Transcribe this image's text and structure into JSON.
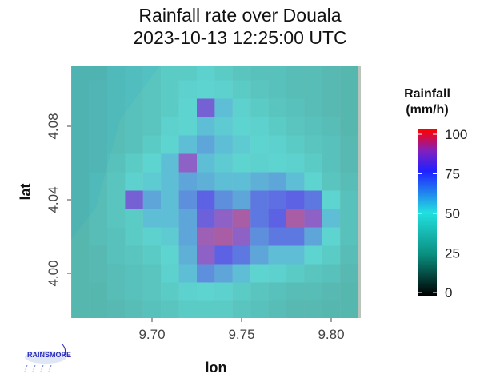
{
  "chart_data": {
    "type": "heatmap",
    "title": "Rainfall rate over Douala",
    "subtitle": "2023-10-13 12:25:00 UTC",
    "xlabel": "lon",
    "ylabel": "lat",
    "xlim": [
      9.655,
      9.815
    ],
    "ylim": [
      3.975,
      4.113
    ],
    "xticks": [
      "9.70",
      "9.75",
      "9.80"
    ],
    "xtick_values": [
      9.7,
      9.75,
      9.8
    ],
    "yticks": [
      "4.00",
      "4.04",
      "4.08"
    ],
    "ytick_values": [
      4.0,
      4.04,
      4.08
    ],
    "legend_title": "Rainfall\n(mm/h)",
    "legend_title_lines": [
      "Rainfall",
      "(mm/h)"
    ],
    "legend_position": "right",
    "colorbar_ticks": [
      "0",
      "25",
      "50",
      "75",
      "100"
    ],
    "colorbar_tick_values": [
      0,
      25,
      50,
      75,
      100
    ],
    "colorbar_range": [
      0,
      100
    ],
    "colorscale": [
      "#000000",
      "#0a8f80",
      "#22e0e0",
      "#2020ff",
      "#8020c0",
      "#ff0000"
    ],
    "lon": [
      9.66,
      9.67,
      9.68,
      9.69,
      9.7,
      9.71,
      9.72,
      9.73,
      9.74,
      9.75,
      9.76,
      9.77,
      9.78,
      9.79,
      9.8,
      9.81
    ],
    "lat": [
      4.11,
      4.1,
      4.09,
      4.08,
      4.07,
      4.06,
      4.05,
      4.04,
      4.03,
      4.02,
      4.01,
      4.0,
      3.99,
      3.98
    ],
    "values": [
      [
        35,
        35,
        38,
        40,
        42,
        45,
        45,
        48,
        45,
        42,
        40,
        40,
        38,
        38,
        36,
        35
      ],
      [
        35,
        36,
        38,
        40,
        42,
        45,
        48,
        50,
        48,
        45,
        42,
        40,
        38,
        38,
        36,
        35
      ],
      [
        35,
        36,
        38,
        40,
        42,
        45,
        50,
        80,
        55,
        48,
        45,
        42,
        40,
        38,
        36,
        35
      ],
      [
        35,
        36,
        38,
        40,
        42,
        48,
        50,
        55,
        52,
        50,
        48,
        45,
        42,
        40,
        38,
        35
      ],
      [
        35,
        36,
        38,
        40,
        45,
        50,
        55,
        60,
        55,
        52,
        50,
        48,
        45,
        42,
        40,
        36
      ],
      [
        35,
        36,
        40,
        45,
        50,
        55,
        85,
        55,
        52,
        50,
        48,
        50,
        48,
        45,
        40,
        36
      ],
      [
        35,
        38,
        42,
        48,
        52,
        55,
        60,
        58,
        55,
        55,
        58,
        60,
        55,
        50,
        42,
        38
      ],
      [
        35,
        38,
        42,
        80,
        60,
        55,
        65,
        75,
        65,
        60,
        70,
        72,
        75,
        70,
        50,
        40
      ],
      [
        35,
        38,
        42,
        45,
        55,
        55,
        60,
        78,
        85,
        90,
        70,
        75,
        90,
        85,
        55,
        40
      ],
      [
        35,
        38,
        40,
        45,
        48,
        52,
        60,
        88,
        90,
        85,
        65,
        70,
        70,
        60,
        50,
        40
      ],
      [
        35,
        36,
        40,
        42,
        45,
        50,
        58,
        85,
        75,
        70,
        60,
        55,
        55,
        50,
        45,
        38
      ],
      [
        35,
        36,
        38,
        40,
        42,
        48,
        55,
        65,
        60,
        55,
        50,
        48,
        45,
        42,
        40,
        36
      ],
      [
        35,
        35,
        38,
        40,
        42,
        45,
        48,
        50,
        48,
        45,
        42,
        40,
        38,
        38,
        36,
        35
      ],
      [
        35,
        35,
        36,
        38,
        40,
        42,
        45,
        45,
        45,
        42,
        40,
        38,
        36,
        36,
        35,
        35
      ]
    ]
  },
  "logo": {
    "text": "RAINSMORE"
  }
}
